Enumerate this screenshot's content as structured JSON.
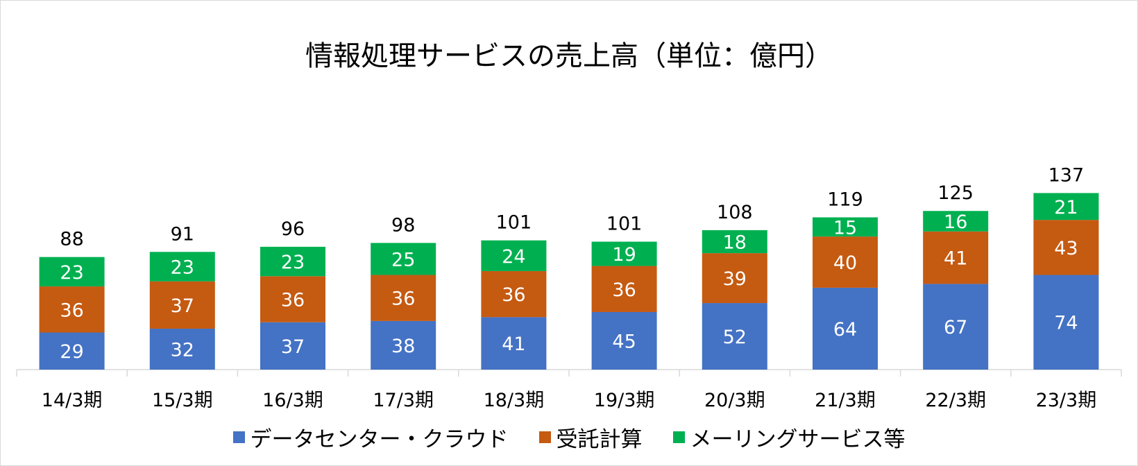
{
  "chart_data": {
    "type": "bar",
    "stacked": true,
    "title": "情報処理サービスの売上高（単位：億円）",
    "categories": [
      "14/3期",
      "15/3期",
      "16/3期",
      "17/3期",
      "18/3期",
      "19/3期",
      "20/3期",
      "21/3期",
      "22/3期",
      "23/3期"
    ],
    "series": [
      {
        "name": "データセンター・クラウド",
        "color": "#4472C4",
        "values": [
          29,
          32,
          37,
          38,
          41,
          45,
          52,
          64,
          67,
          74
        ]
      },
      {
        "name": "受託計算",
        "color": "#C55A11",
        "values": [
          36,
          37,
          36,
          36,
          36,
          36,
          39,
          40,
          41,
          43
        ]
      },
      {
        "name": "メーリングサービス等",
        "color": "#00B050",
        "values": [
          23,
          23,
          23,
          25,
          24,
          19,
          18,
          15,
          16,
          21
        ]
      }
    ],
    "totals": [
      88,
      91,
      96,
      98,
      101,
      101,
      108,
      119,
      125,
      137
    ],
    "legend_position": "bottom",
    "grid": false
  }
}
